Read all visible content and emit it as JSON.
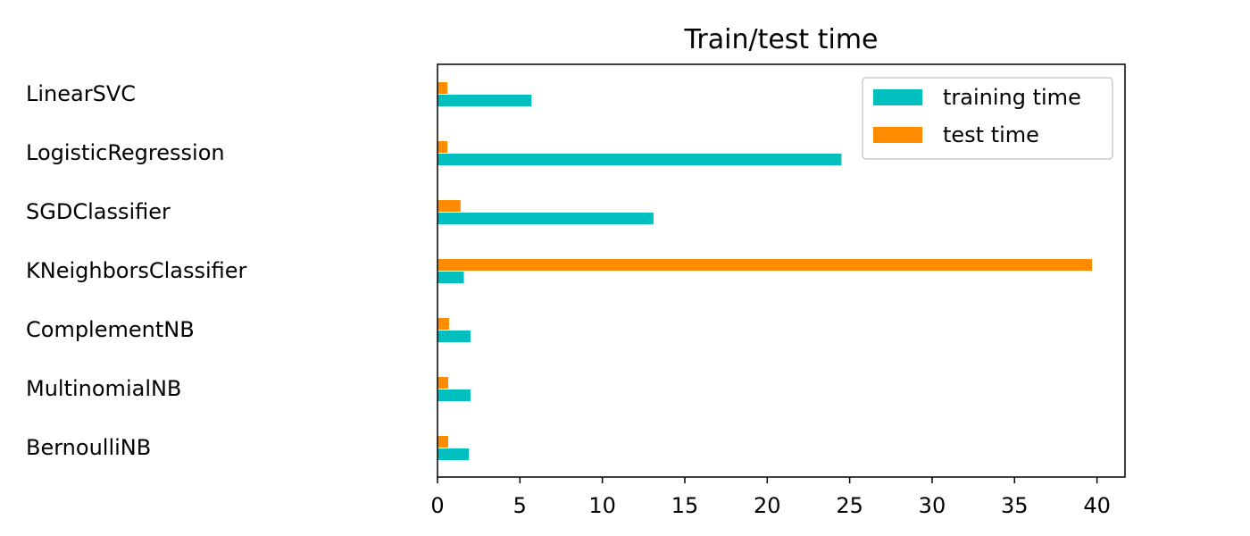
{
  "chart_data": {
    "type": "bar",
    "orientation": "horizontal",
    "title": "Train/test time",
    "xlabel": "",
    "ylabel": "",
    "categories": [
      "LinearSVC",
      "LogisticRegression",
      "SGDClassifier",
      "KNeighborsClassifier",
      "ComplementNB",
      "MultinomialNB",
      "BernoulliNB"
    ],
    "series": [
      {
        "name": "training time",
        "color": "#00bfbf",
        "values": [
          5.7,
          24.5,
          13.1,
          1.6,
          2.0,
          2.0,
          1.9
        ]
      },
      {
        "name": "test time",
        "color": "#ff8c00",
        "values": [
          0.6,
          0.6,
          1.4,
          39.7,
          0.7,
          0.65,
          0.65
        ]
      }
    ],
    "xlim": [
      0,
      41.7
    ],
    "xticks": [
      0,
      5,
      10,
      15,
      20,
      25,
      30,
      35,
      40
    ],
    "grid": false,
    "legend_position": "upper right"
  }
}
